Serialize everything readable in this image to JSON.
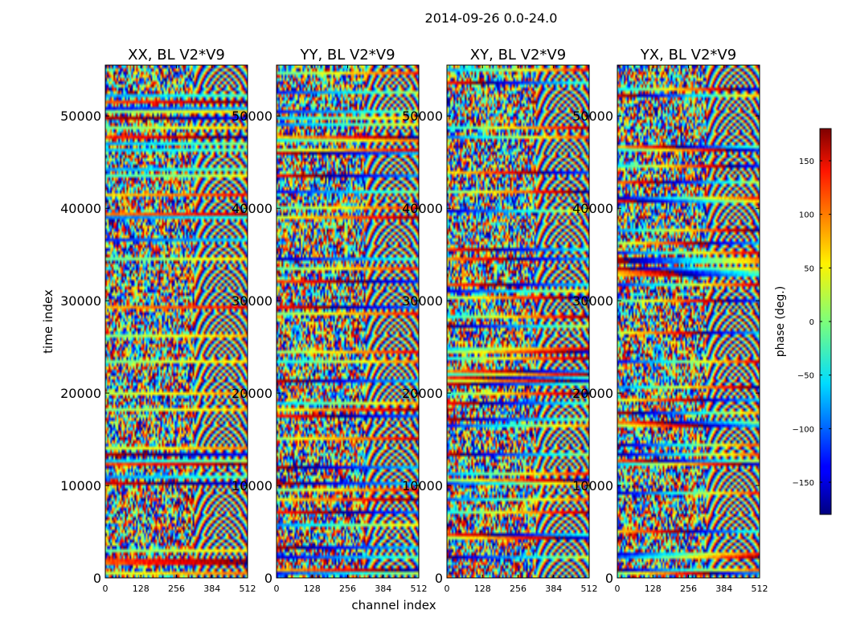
{
  "chart_data": {
    "type": "heatmap",
    "suptitle": "2014-09-26 0.0-24.0",
    "xlabel": "channel index",
    "ylabel": "time index",
    "xlim": [
      0,
      512
    ],
    "ylim": [
      0,
      55500
    ],
    "x_ticks": [
      0,
      128,
      256,
      384,
      512
    ],
    "y_ticks": [
      0,
      10000,
      20000,
      30000,
      40000,
      50000
    ],
    "panels": [
      {
        "title": "XX, BL V2*V9",
        "polarization": "XX"
      },
      {
        "title": "YY, BL V2*V9",
        "polarization": "YY"
      },
      {
        "title": "XY, BL V2*V9",
        "polarization": "XY"
      },
      {
        "title": "YX, BL V2*V9",
        "polarization": "YX"
      }
    ],
    "colorbar": {
      "label": "phase (deg.)",
      "vmin": -180,
      "vmax": 180,
      "ticks": [
        -150,
        -100,
        -50,
        0,
        50,
        100,
        150
      ],
      "tick_labels": [
        "−150",
        "−100",
        "−50",
        "0",
        "50",
        "100",
        "150"
      ],
      "colormap": "jet"
    }
  }
}
